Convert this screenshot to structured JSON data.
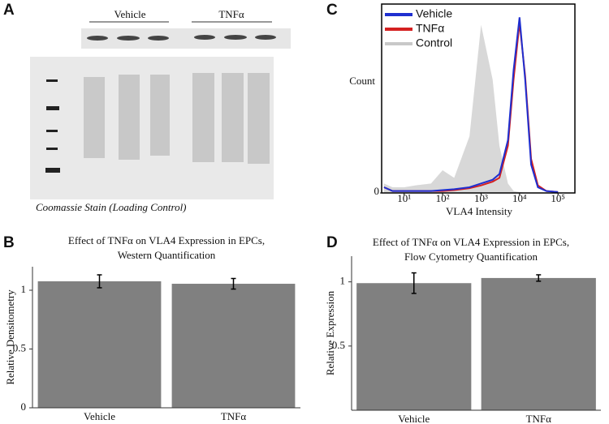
{
  "panels": [
    "A",
    "B",
    "C",
    "D"
  ],
  "gel": {
    "groups": [
      "Vehicle",
      "TNFα"
    ],
    "caption": "Coomassie Stain (Loading Control)"
  },
  "chart_data": [
    {
      "type": "bar",
      "title": [
        "Effect of TNFα on VLA4 Expression in EPCs,",
        "Western Quantification"
      ],
      "ylabel": "Relative Densitometry",
      "categories": [
        "Vehicle",
        "TNFα"
      ],
      "values": [
        1.076,
        1.055
      ],
      "errors": [
        0.055,
        0.045
      ],
      "color": "#808080",
      "ylim": [
        0,
        1.2
      ],
      "yticks": [
        0,
        0.5,
        1
      ]
    },
    {
      "type": "line",
      "xscale": "log",
      "ylabel": "Count",
      "xlabel": "VLA4 Intensity",
      "legend": "upper left",
      "x": [
        3,
        5,
        10,
        20,
        50,
        100,
        200,
        500,
        1000,
        2000,
        3000,
        5000,
        7000,
        10000,
        14000,
        20000,
        30000,
        50000,
        100000
      ],
      "series": [
        {
          "name": "Vehicle",
          "color": "#1f2fd0",
          "values": [
            3,
            1,
            1,
            1,
            1,
            1.5,
            2,
            3,
            5,
            7,
            10,
            28,
            65,
            93,
            60,
            15,
            3,
            1,
            0.5
          ]
        },
        {
          "name": "TNFα",
          "color": "#d42020",
          "values": [
            3,
            1,
            1,
            1,
            1,
            1,
            1.5,
            2.5,
            4,
            6,
            8,
            25,
            60,
            90,
            62,
            18,
            4,
            1,
            0.5
          ]
        },
        {
          "name": "Control",
          "color": "#c8c8c8",
          "area": true,
          "values": [
            5,
            3,
            3,
            4,
            5,
            12,
            8,
            30,
            89,
            60,
            25,
            5,
            1,
            0.5,
            0,
            0,
            0,
            0,
            0
          ]
        }
      ],
      "xlim": [
        2.6,
        275000
      ],
      "xticks": [
        {
          "value": 10,
          "label": "10¹"
        },
        {
          "value": 100,
          "label": "10²"
        },
        {
          "value": 1000,
          "label": "10³"
        },
        {
          "value": 10000,
          "label": "10⁴"
        },
        {
          "value": 100000,
          "label": "10⁵"
        }
      ],
      "ylim": [
        0,
        100
      ],
      "yticks": [
        0
      ]
    },
    {
      "type": "bar",
      "title": [
        "Effect of TNFα on VLA4 Expression in EPCs,",
        "Flow Cytometry Quantification"
      ],
      "ylabel": "Relative Expression",
      "categories": [
        "Vehicle",
        "TNFα"
      ],
      "values": [
        0.99,
        1.03
      ],
      "errors": [
        0.08,
        0.025
      ],
      "color": "#808080",
      "ylim": [
        0,
        1.2
      ],
      "yticks": [
        0.5,
        1
      ]
    }
  ]
}
